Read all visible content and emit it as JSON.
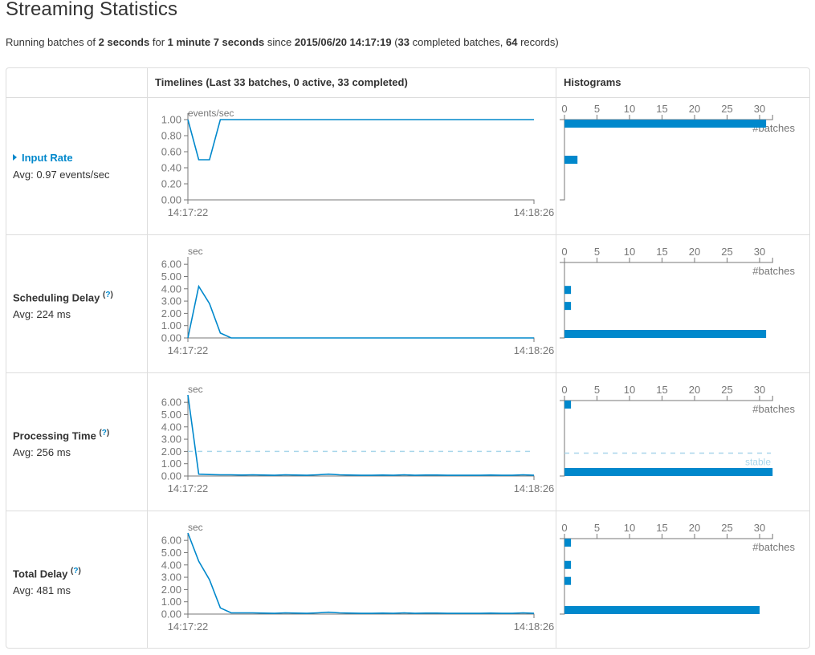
{
  "page": {
    "title": "Streaming Statistics",
    "summary": {
      "prefix": "Running batches of ",
      "batch_interval": "2 seconds",
      "for_text": " for ",
      "duration": "1 minute 7 seconds",
      "since_text": " since ",
      "start_time": "2015/06/20 14:17:19",
      "open_paren": " (",
      "completed_batches": "33",
      "completed_text": " completed batches, ",
      "records": "64",
      "records_text": " records)"
    }
  },
  "table": {
    "headers": {
      "label": "",
      "timelines": "Timelines (Last 33 batches, 0 active, 33 completed)",
      "histograms": "Histograms"
    },
    "rows": [
      {
        "name": "Input Rate",
        "is_link": true,
        "has_help": false,
        "avg": "Avg: 0.97 events/sec"
      },
      {
        "name": "Scheduling Delay",
        "is_link": false,
        "has_help": true,
        "avg": "Avg: 224 ms"
      },
      {
        "name": "Processing Time",
        "is_link": false,
        "has_help": true,
        "avg": "Avg: 256 ms"
      },
      {
        "name": "Total Delay",
        "is_link": false,
        "has_help": true,
        "avg": "Avg: 481 ms"
      }
    ],
    "help_open": "(",
    "help_q": "?",
    "help_close": ")"
  },
  "colors": {
    "line": "#0088cc",
    "axis": "#777777",
    "tick_text": "#777777",
    "stable_line": "#a8d6ea",
    "link": "#0088cc"
  },
  "chart_data": [
    {
      "type": "line",
      "title": "Input Rate timeline",
      "ylabel": "events/sec",
      "ylim": [
        0,
        1.0
      ],
      "yticks": [
        "0.00",
        "0.20",
        "0.40",
        "0.60",
        "0.80",
        "1.00"
      ],
      "ytick_values": [
        0,
        0.2,
        0.4,
        0.6,
        0.8,
        1.0
      ],
      "xticks": [
        "14:17:22",
        "14:18:26"
      ],
      "x_count": 33,
      "values": [
        1.0,
        0.5,
        0.5,
        1.0,
        1.0,
        1.0,
        1.0,
        1.0,
        1.0,
        1.0,
        1.0,
        1.0,
        1.0,
        1.0,
        1.0,
        1.0,
        1.0,
        1.0,
        1.0,
        1.0,
        1.0,
        1.0,
        1.0,
        1.0,
        1.0,
        1.0,
        1.0,
        1.0,
        1.0,
        1.0,
        1.0,
        1.0,
        1.0
      ]
    },
    {
      "type": "line",
      "title": "Scheduling Delay timeline",
      "ylabel": "sec",
      "ylim": [
        0,
        6.6
      ],
      "yticks": [
        "0.00",
        "1.00",
        "2.00",
        "3.00",
        "4.00",
        "5.00",
        "6.00"
      ],
      "ytick_values": [
        0,
        1,
        2,
        3,
        4,
        5,
        6
      ],
      "xticks": [
        "14:17:22",
        "14:18:26"
      ],
      "x_count": 33,
      "values": [
        0,
        4.2,
        2.8,
        0.4,
        0,
        0,
        0,
        0,
        0,
        0,
        0,
        0,
        0,
        0,
        0,
        0,
        0,
        0,
        0,
        0,
        0,
        0,
        0,
        0,
        0,
        0,
        0,
        0,
        0,
        0,
        0,
        0,
        0
      ]
    },
    {
      "type": "line",
      "title": "Processing Time timeline",
      "ylabel": "sec",
      "ylim": [
        0,
        6.6
      ],
      "yticks": [
        "0.00",
        "1.00",
        "2.00",
        "3.00",
        "4.00",
        "5.00",
        "6.00"
      ],
      "ytick_values": [
        0,
        1,
        2,
        3,
        4,
        5,
        6
      ],
      "xticks": [
        "14:17:22",
        "14:18:26"
      ],
      "x_count": 33,
      "stable_threshold": 2.0,
      "stable_label": "stable",
      "values": [
        6.6,
        0.15,
        0.12,
        0.1,
        0.1,
        0.08,
        0.1,
        0.08,
        0.06,
        0.1,
        0.08,
        0.06,
        0.1,
        0.15,
        0.1,
        0.08,
        0.06,
        0.06,
        0.08,
        0.06,
        0.1,
        0.06,
        0.08,
        0.08,
        0.06,
        0.06,
        0.06,
        0.06,
        0.08,
        0.06,
        0.06,
        0.1,
        0.06
      ]
    },
    {
      "type": "line",
      "title": "Total Delay timeline",
      "ylabel": "sec",
      "ylim": [
        0,
        6.6
      ],
      "yticks": [
        "0.00",
        "1.00",
        "2.00",
        "3.00",
        "4.00",
        "5.00",
        "6.00"
      ],
      "ytick_values": [
        0,
        1,
        2,
        3,
        4,
        5,
        6
      ],
      "xticks": [
        "14:17:22",
        "14:18:26"
      ],
      "x_count": 33,
      "values": [
        6.6,
        4.3,
        2.8,
        0.5,
        0.1,
        0.1,
        0.1,
        0.08,
        0.06,
        0.1,
        0.08,
        0.06,
        0.1,
        0.15,
        0.1,
        0.08,
        0.06,
        0.06,
        0.08,
        0.06,
        0.1,
        0.06,
        0.08,
        0.08,
        0.06,
        0.06,
        0.06,
        0.06,
        0.08,
        0.06,
        0.06,
        0.1,
        0.06
      ]
    },
    {
      "type": "bar",
      "orientation": "horizontal",
      "title": "Input Rate histogram",
      "xlabel": "#batches",
      "xticks": [
        "0",
        "5",
        "10",
        "15",
        "20",
        "25",
        "30"
      ],
      "xtick_values": [
        0,
        5,
        10,
        15,
        20,
        25,
        30
      ],
      "xlim": [
        0,
        32
      ],
      "ylim": [
        0,
        1.0
      ],
      "bins": [
        {
          "value_level": 1.0,
          "count": 31
        },
        {
          "value_level": 0.5,
          "count": 2
        }
      ]
    },
    {
      "type": "bar",
      "orientation": "horizontal",
      "title": "Scheduling Delay histogram",
      "xlabel": "#batches",
      "xticks": [
        "0",
        "5",
        "10",
        "15",
        "20",
        "25",
        "30"
      ],
      "xtick_values": [
        0,
        5,
        10,
        15,
        20,
        25,
        30
      ],
      "xlim": [
        0,
        32
      ],
      "ylim": [
        0,
        6.6
      ],
      "bins": [
        {
          "value_level": 4.2,
          "count": 1
        },
        {
          "value_level": 2.8,
          "count": 1
        },
        {
          "value_level": 0.2,
          "count": 31
        }
      ]
    },
    {
      "type": "bar",
      "orientation": "horizontal",
      "title": "Processing Time histogram",
      "xlabel": "#batches",
      "xticks": [
        "0",
        "5",
        "10",
        "15",
        "20",
        "25",
        "30"
      ],
      "xtick_values": [
        0,
        5,
        10,
        15,
        20,
        25,
        30
      ],
      "xlim": [
        0,
        32
      ],
      "ylim": [
        0,
        6.6
      ],
      "stable_threshold": 2.0,
      "stable_label": "stable",
      "bins": [
        {
          "value_level": 6.3,
          "count": 1
        },
        {
          "value_level": 0.2,
          "count": 32
        }
      ]
    },
    {
      "type": "bar",
      "orientation": "horizontal",
      "title": "Total Delay histogram",
      "xlabel": "#batches",
      "xticks": [
        "0",
        "5",
        "10",
        "15",
        "20",
        "25",
        "30"
      ],
      "xtick_values": [
        0,
        5,
        10,
        15,
        20,
        25,
        30
      ],
      "xlim": [
        0,
        32
      ],
      "ylim": [
        0,
        6.6
      ],
      "bins": [
        {
          "value_level": 6.3,
          "count": 1
        },
        {
          "value_level": 4.3,
          "count": 1
        },
        {
          "value_level": 2.9,
          "count": 1
        },
        {
          "value_level": 0.3,
          "count": 30
        }
      ]
    }
  ]
}
